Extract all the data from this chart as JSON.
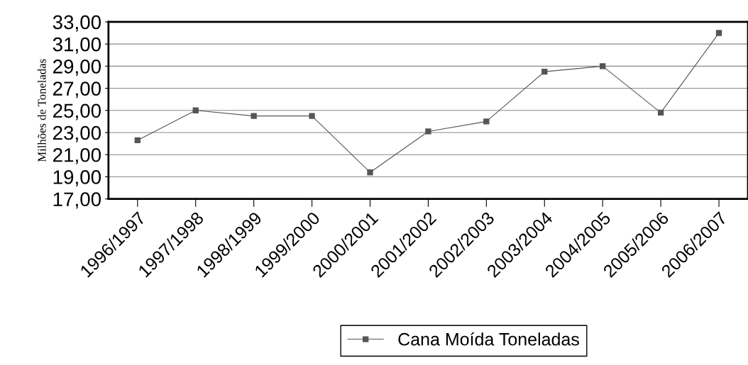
{
  "chart_data": {
    "type": "line",
    "ylabel": "Milhões de Toneladas",
    "categories": [
      "1996/1997",
      "1997/1998",
      "1998/1999",
      "1999/2000",
      "2000/2001",
      "2001/2002",
      "2002/2003",
      "2003/2004",
      "2004/2005",
      "2005/2006",
      "2006/2007"
    ],
    "series": [
      {
        "name": "Cana Moída Toneladas",
        "color": "#555555",
        "values": [
          22.3,
          25.0,
          24.5,
          24.5,
          19.4,
          23.1,
          24.0,
          28.5,
          29.0,
          24.8,
          32.0
        ]
      }
    ],
    "ylim": [
      17,
      33
    ],
    "yticks": [
      {
        "value": 17,
        "label": "17,00"
      },
      {
        "value": 19,
        "label": "19,00"
      },
      {
        "value": 21,
        "label": "21,00"
      },
      {
        "value": 23,
        "label": "23,00"
      },
      {
        "value": 25,
        "label": "25,00"
      },
      {
        "value": 27,
        "label": "27,00"
      },
      {
        "value": 29,
        "label": "29,00"
      },
      {
        "value": 31,
        "label": "31,00"
      },
      {
        "value": 33,
        "label": "33,00"
      }
    ],
    "grid": "y",
    "legend": "bottom",
    "marker": "square",
    "line_style": "solid"
  }
}
